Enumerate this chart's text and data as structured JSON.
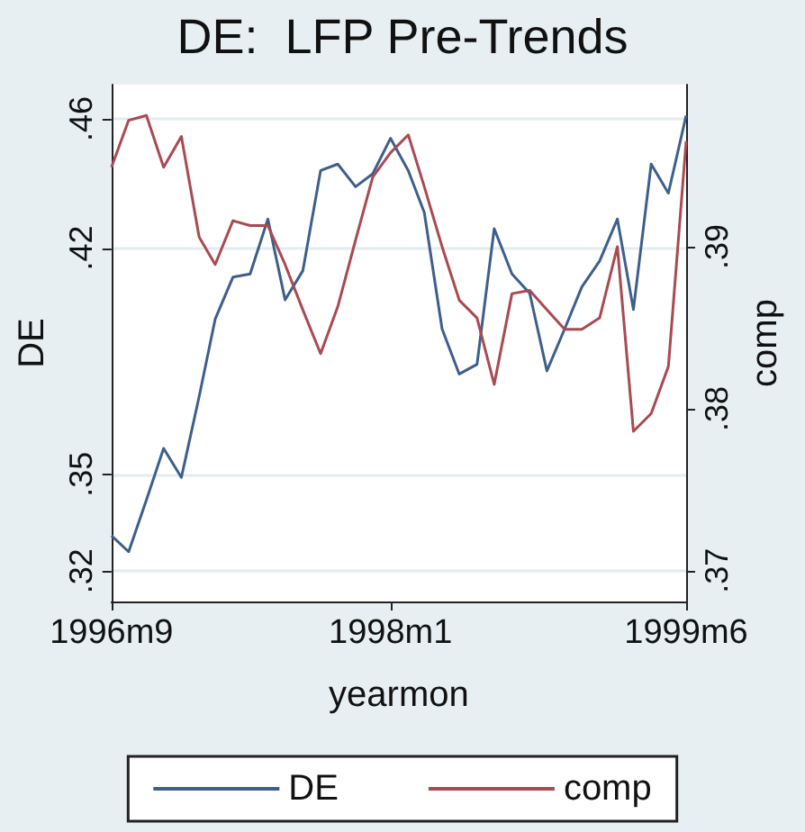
{
  "chart_data": {
    "type": "line",
    "title": "DE:  LFP Pre-Trends",
    "xlabel": "yearmon",
    "ylabel": "DE",
    "y2label": "comp",
    "x": [
      "1996-09",
      "1996-10",
      "1996-11",
      "1996-12",
      "1997-01",
      "1997-02",
      "1997-03",
      "1997-04",
      "1997-05",
      "1997-06",
      "1997-07",
      "1997-08",
      "1997-09",
      "1997-10",
      "1997-11",
      "1997-12",
      "1998-01",
      "1998-02",
      "1998-03",
      "1998-04",
      "1998-05",
      "1998-06",
      "1998-07",
      "1998-08",
      "1998-09",
      "1998-10",
      "1998-11",
      "1998-12",
      "1999-01",
      "1999-02",
      "1999-03",
      "1999-04",
      "1999-05",
      "1999-06"
    ],
    "series": [
      {
        "name": "DE",
        "color": "#3d5f8c",
        "values": [
          0.331,
          0.326,
          0.342,
          0.358,
          0.349,
          0.374,
          0.398,
          0.411,
          0.412,
          0.429,
          0.404,
          0.413,
          0.444,
          0.446,
          0.439,
          0.443,
          0.454,
          0.444,
          0.431,
          0.395,
          0.381,
          0.384,
          0.426,
          0.412,
          0.406,
          0.382,
          0.395,
          0.408,
          0.416,
          0.429,
          0.401,
          0.446,
          0.437,
          0.461
        ]
      },
      {
        "name": "comp",
        "color": "#a84a52",
        "axis": "y2",
        "values": [
          0.3949,
          0.3978,
          0.3981,
          0.3949,
          0.3968,
          0.3906,
          0.3889,
          0.3916,
          0.3913,
          0.3913,
          0.3889,
          0.3861,
          0.3834,
          0.3863,
          0.3904,
          0.3943,
          0.3958,
          0.3969,
          0.3937,
          0.39,
          0.3867,
          0.3856,
          0.3815,
          0.3871,
          0.3873,
          0.3861,
          0.3849,
          0.3849,
          0.3856,
          0.39,
          0.3786,
          0.3797,
          0.3826,
          0.3965
        ]
      }
    ],
    "xlim": [
      "1996-09",
      "1999-06"
    ],
    "xticks": [
      {
        "value": "1996-09",
        "label": "1996m9"
      },
      {
        "value": "1998-01",
        "label": "1998m1"
      },
      {
        "value": "1999-06",
        "label": "1999m6"
      }
    ],
    "ylim": [
      0.3106,
      0.4706
    ],
    "yticks": [
      {
        "value": 0.32,
        "label": ".32"
      },
      {
        "value": 0.35,
        "label": ".35"
      },
      {
        "value": 0.42,
        "label": ".42"
      },
      {
        "value": 0.46,
        "label": ".46"
      }
    ],
    "y2lim": [
      0.3681,
      0.4
    ],
    "y2ticks": [
      {
        "value": 0.37,
        "label": ".37"
      },
      {
        "value": 0.38,
        "label": ".38"
      },
      {
        "value": 0.39,
        "label": ".39"
      }
    ],
    "grid": "y",
    "legend": "bottom",
    "marker": "none",
    "line_style": "solid"
  }
}
